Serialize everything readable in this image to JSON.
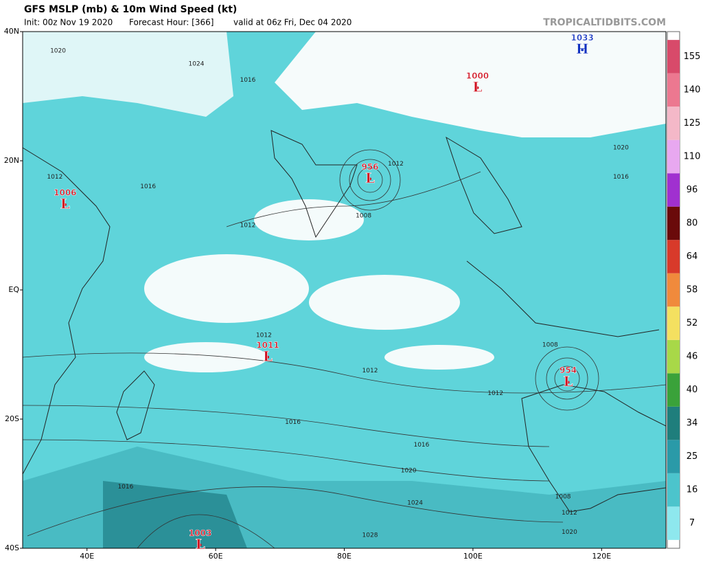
{
  "header": {
    "title": "GFS MSLP (mb) & 10m Wind Speed (kt)",
    "init": "Init: 00z Nov 19 2020",
    "forecast_hour": "Forecast Hour: [366]",
    "valid": "valid at 06z Fri, Dec 04 2020",
    "source": "TROPICALTIDBITS.COM"
  },
  "map": {
    "lon_range": [
      30,
      130
    ],
    "lat_range": [
      -40,
      40
    ],
    "lat_labels": [
      {
        "value": 40,
        "label": "40N"
      },
      {
        "value": 20,
        "label": "20N"
      },
      {
        "value": 0,
        "label": "EQ"
      },
      {
        "value": -20,
        "label": "20S"
      },
      {
        "value": -40,
        "label": "40S"
      }
    ],
    "lon_labels": [
      {
        "value": 40,
        "label": "40E"
      },
      {
        "value": 60,
        "label": "60E"
      },
      {
        "value": 80,
        "label": "80E"
      },
      {
        "value": 100,
        "label": "100E"
      },
      {
        "value": 120,
        "label": "120E"
      }
    ],
    "centers": [
      {
        "pressure": "1033",
        "letter": "H",
        "lon": 117,
        "lat": 37.2,
        "color": "#1030c0"
      },
      {
        "pressure": "1000",
        "letter": "L",
        "lon": 100.7,
        "lat": 31.3,
        "color": "#d01020"
      },
      {
        "pressure": "956",
        "letter": "L",
        "lon": 84,
        "lat": 17.2,
        "color": "#d01020"
      },
      {
        "pressure": "1006",
        "letter": "L",
        "lon": 36.6,
        "lat": 13.2,
        "color": "#d01020"
      },
      {
        "pressure": "1011",
        "letter": "L",
        "lon": 68.1,
        "lat": -10.4,
        "color": "#d01020"
      },
      {
        "pressure": "954",
        "letter": "L",
        "lon": 114.8,
        "lat": -14.3,
        "color": "#d01020"
      },
      {
        "pressure": "1003",
        "letter": "L",
        "lon": 57.6,
        "lat": -39.5,
        "color": "#d01020"
      }
    ],
    "isobar_labels": [
      {
        "text": "1012",
        "lon": 65,
        "lat": 10
      },
      {
        "text": "1012",
        "lon": 67.5,
        "lat": -7
      },
      {
        "text": "1012",
        "lon": 84,
        "lat": -12.5
      },
      {
        "text": "1012",
        "lon": 103.5,
        "lat": -16
      },
      {
        "text": "1016",
        "lon": 72,
        "lat": -20.5
      },
      {
        "text": "1016",
        "lon": 92,
        "lat": -24
      },
      {
        "text": "1020",
        "lon": 90,
        "lat": -28
      },
      {
        "text": "1024",
        "lon": 91,
        "lat": -33
      },
      {
        "text": "1028",
        "lon": 84,
        "lat": -38
      },
      {
        "text": "1008",
        "lon": 83,
        "lat": 11.5
      },
      {
        "text": "1012",
        "lon": 88,
        "lat": 19.5
      },
      {
        "text": "1016",
        "lon": 49.5,
        "lat": 16
      },
      {
        "text": "1016",
        "lon": 65,
        "lat": 32.5
      },
      {
        "text": "1024",
        "lon": 57,
        "lat": 35
      },
      {
        "text": "1020",
        "lon": 35.5,
        "lat": 37
      },
      {
        "text": "1016",
        "lon": 123,
        "lat": 17.5
      },
      {
        "text": "1020",
        "lon": 123,
        "lat": 22
      },
      {
        "text": "1008",
        "lon": 112,
        "lat": -8.5
      },
      {
        "text": "1008",
        "lon": 114,
        "lat": -32
      },
      {
        "text": "1012",
        "lon": 115,
        "lat": -34.5
      },
      {
        "text": "1020",
        "lon": 115,
        "lat": -37.5
      },
      {
        "text": "1016",
        "lon": 46,
        "lat": -30.5
      },
      {
        "text": "1012",
        "lon": 35,
        "lat": 17.5
      }
    ]
  },
  "colorbar": {
    "ticks": [
      7,
      16,
      25,
      34,
      40,
      46,
      52,
      58,
      64,
      80,
      96,
      110,
      125,
      140,
      155
    ],
    "colors": [
      "#8ee8ee",
      "#4cc4cc",
      "#2a9aa8",
      "#1f7e7c",
      "#3aa23a",
      "#a8d848",
      "#f4e060",
      "#f08a3c",
      "#d83a2a",
      "#6a0a0a",
      "#a030d0",
      "#e8a8f0",
      "#f4b8c8",
      "#ec7890",
      "#d84a6a"
    ]
  }
}
